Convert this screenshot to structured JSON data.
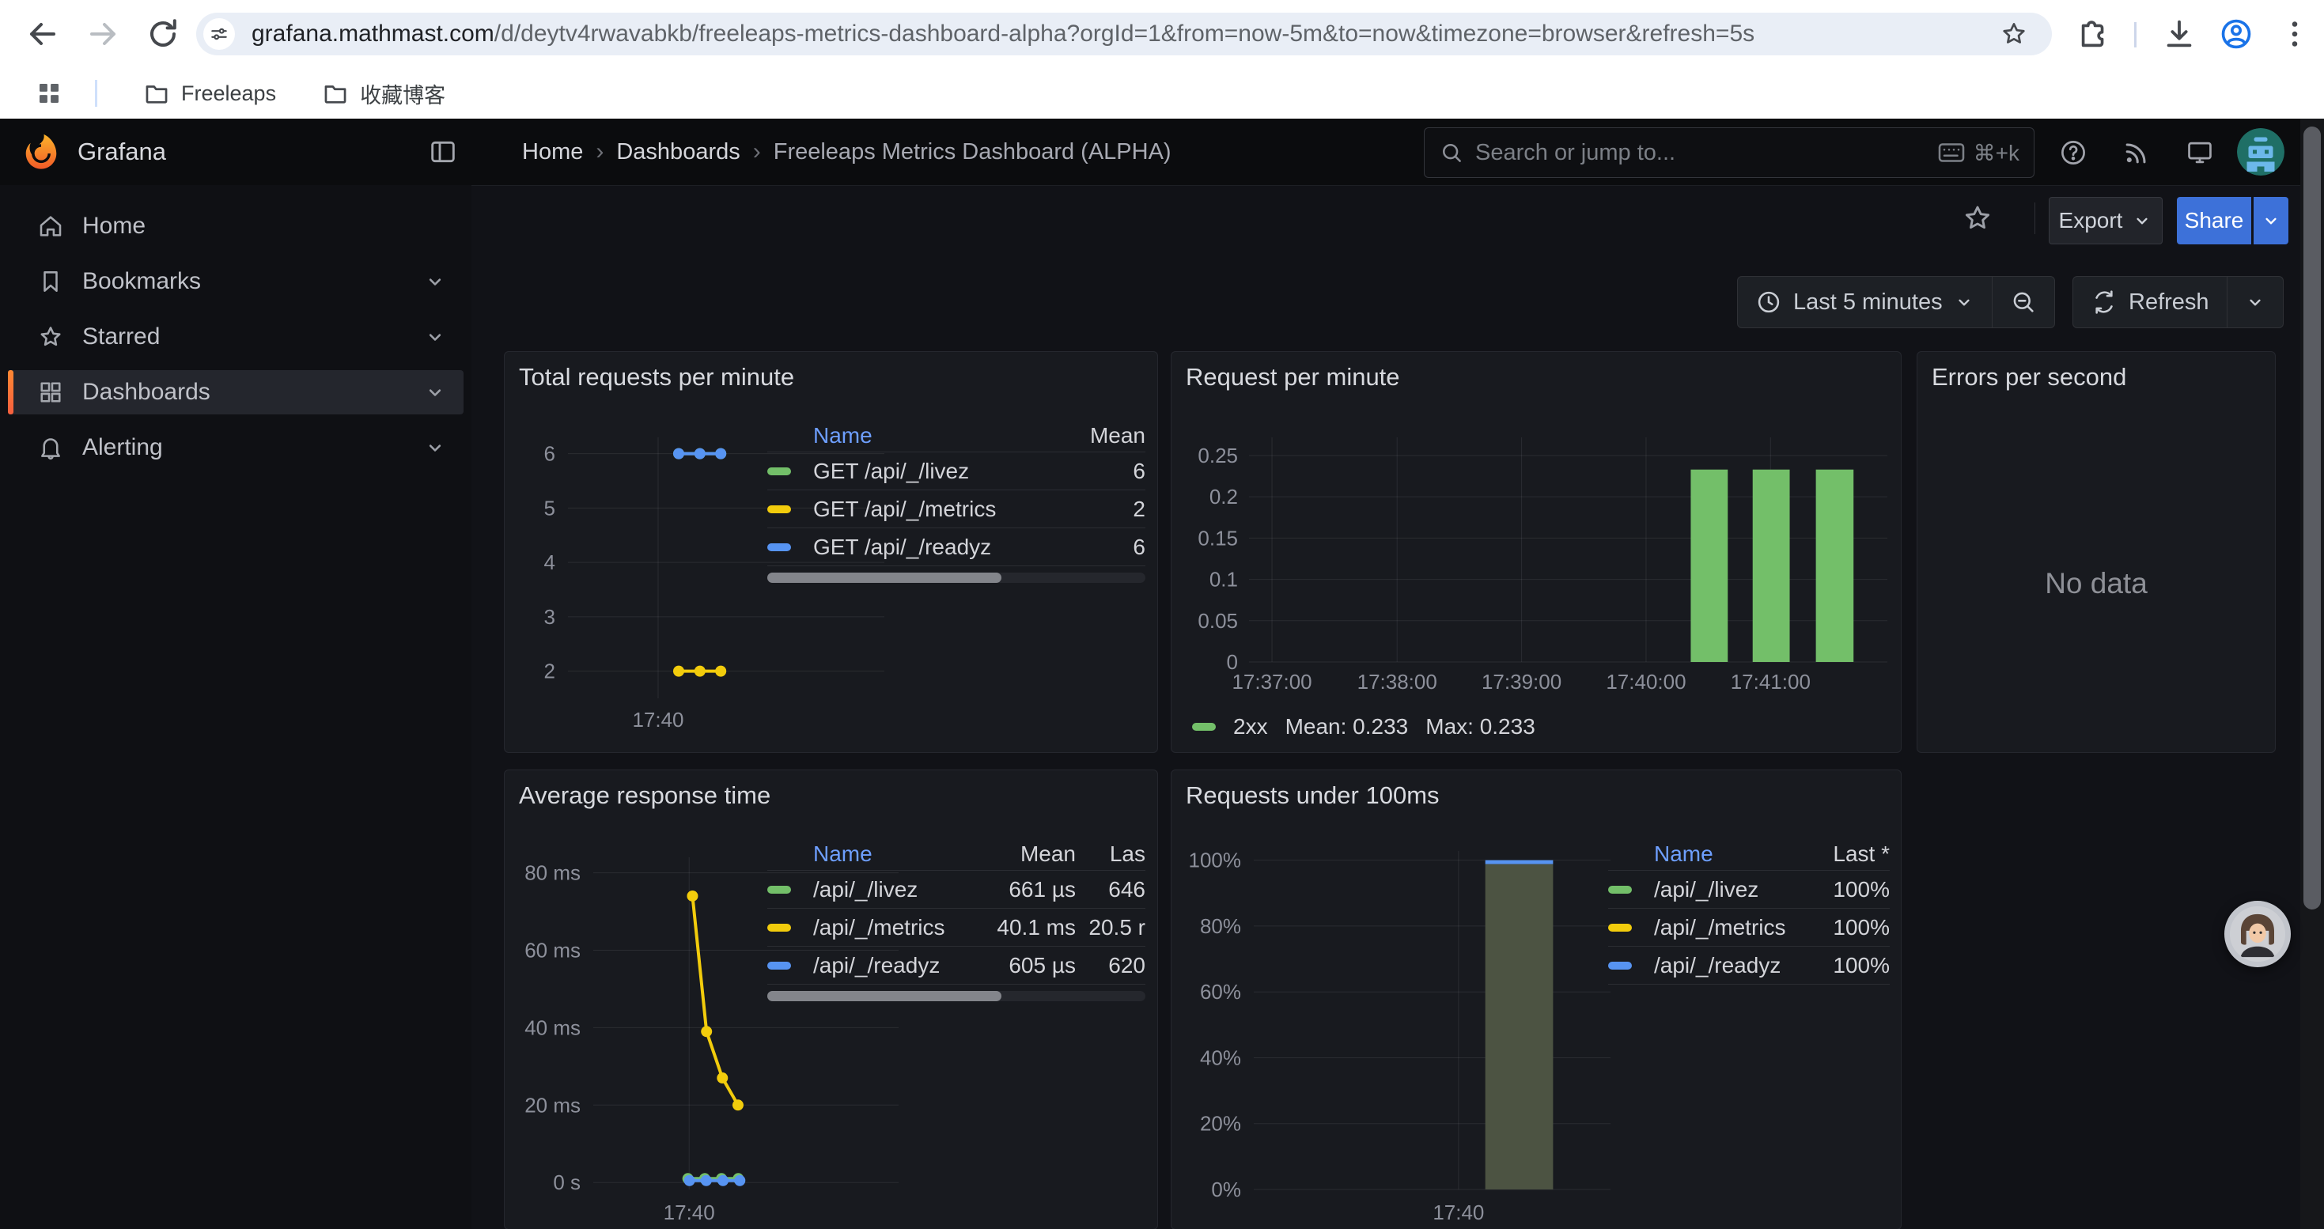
{
  "browser": {
    "toolbar": {
      "url_host": "grafana.mathmast.com",
      "url_path": "/d/deytv4rwavabkb/freeleaps-metrics-dashboard-alpha?orgId=1&from=now-5m&to=now&timezone=browser&refresh=5s",
      "icons": [
        "back-icon",
        "forward-icon",
        "reload-icon",
        "site-info-icon",
        "bookmark-star-icon",
        "extensions-icon",
        "download-icon",
        "profile-icon",
        "menu-icon"
      ]
    },
    "bookmarks": [
      "Freeleaps",
      "收藏博客"
    ]
  },
  "grafana": {
    "brand": "Grafana",
    "breadcrumb": [
      "Home",
      "Dashboards",
      "Freeleaps Metrics Dashboard (ALPHA)"
    ],
    "search": {
      "placeholder": "Search or jump to...",
      "shortcut": "⌘+k"
    },
    "header_icons": [
      "help-icon",
      "rss-icon",
      "monitor-icon",
      "user-avatar"
    ],
    "toolbar": {
      "export": "Export",
      "share": "Share"
    },
    "time_controls": {
      "range": "Last 5 minutes",
      "refresh": "Refresh"
    },
    "sidebar": [
      {
        "label": "Home",
        "icon": "home-icon",
        "chevron": false,
        "active": false
      },
      {
        "label": "Bookmarks",
        "icon": "bookmark-icon",
        "chevron": true,
        "active": false
      },
      {
        "label": "Starred",
        "icon": "star-icon",
        "chevron": true,
        "active": false
      },
      {
        "label": "Dashboards",
        "icon": "apps-icon",
        "chevron": true,
        "active": true
      },
      {
        "label": "Alerting",
        "icon": "bell-icon",
        "chevron": true,
        "active": false
      }
    ]
  },
  "colors": {
    "green": "#73BF69",
    "yellow": "#F2CC0C",
    "blue": "#5794F2",
    "link": "#6E9FFF",
    "primary": "#3D71D9",
    "active_accent": "#FF780A"
  },
  "panels": {
    "total_requests": {
      "title": "Total requests per minute",
      "table": {
        "headers": [
          "Name",
          "Mean"
        ],
        "rows": [
          {
            "color": "#73BF69",
            "name": "GET /api/_/livez",
            "values": [
              "6"
            ]
          },
          {
            "color": "#F2CC0C",
            "name": "GET /api/_/metrics",
            "values": [
              "2"
            ]
          },
          {
            "color": "#5794F2",
            "name": "GET /api/_/readyz",
            "values": [
              "6"
            ]
          }
        ]
      },
      "chart_data": {
        "type": "line",
        "ylim": [
          1.5,
          6.3
        ],
        "y_ticks": [
          {
            "label": "6",
            "v": 6
          },
          {
            "label": "5",
            "v": 5
          },
          {
            "label": "4",
            "v": 4
          },
          {
            "label": "3",
            "v": 3
          },
          {
            "label": "2",
            "v": 2
          }
        ],
        "x_ticks": [
          {
            "label": "17:40",
            "f": 0.285
          }
        ],
        "series": [
          {
            "name": "GET /api/_/livez",
            "color": "#73BF69",
            "points": [
              {
                "f": 0.35,
                "v": 6
              },
              {
                "f": 0.417,
                "v": 6
              },
              {
                "f": 0.483,
                "v": 6
              }
            ]
          },
          {
            "name": "GET /api/_/metrics",
            "color": "#F2CC0C",
            "points": [
              {
                "f": 0.35,
                "v": 2
              },
              {
                "f": 0.417,
                "v": 2
              },
              {
                "f": 0.483,
                "v": 2
              }
            ]
          },
          {
            "name": "GET /api/_/readyz",
            "color": "#5794F2",
            "points": [
              {
                "f": 0.35,
                "v": 6
              },
              {
                "f": 0.417,
                "v": 6
              },
              {
                "f": 0.483,
                "v": 6
              }
            ]
          }
        ]
      }
    },
    "request_per_minute": {
      "title": "Request per minute",
      "legend": {
        "name": "2xx",
        "mean": "Mean: 0.233",
        "max": "Max: 0.233",
        "color": "#73BF69"
      },
      "chart_data": {
        "type": "bar",
        "ylim": [
          0,
          0.272
        ],
        "y_ticks": [
          {
            "label": "0.25",
            "v": 0.25
          },
          {
            "label": "0.2",
            "v": 0.2
          },
          {
            "label": "0.15",
            "v": 0.15
          },
          {
            "label": "0.1",
            "v": 0.1
          },
          {
            "label": "0.05",
            "v": 0.05
          },
          {
            "label": "0",
            "v": 0
          }
        ],
        "x_ticks": [
          {
            "label": "17:37:00",
            "f": 0.036
          },
          {
            "label": "17:38:00",
            "f": 0.232
          },
          {
            "label": "17:39:00",
            "f": 0.427
          },
          {
            "label": "17:40:00",
            "f": 0.622
          },
          {
            "label": "17:41:00",
            "f": 0.817
          }
        ],
        "bars": [
          {
            "f0": 0.692,
            "f1": 0.75,
            "v": 0.233
          },
          {
            "f0": 0.789,
            "f1": 0.847,
            "v": 0.233
          },
          {
            "f0": 0.888,
            "f1": 0.947,
            "v": 0.233
          }
        ],
        "color": "#73BF69"
      }
    },
    "errors_per_second": {
      "title": "Errors per second",
      "no_data": "No data"
    },
    "avg_response_time": {
      "title": "Average response time",
      "table": {
        "headers": [
          "Name",
          "Mean",
          "Las"
        ],
        "rows": [
          {
            "color": "#73BF69",
            "name": "/api/_/livez",
            "values": [
              "661 µs",
              "646"
            ]
          },
          {
            "color": "#F2CC0C",
            "name": "/api/_/metrics",
            "values": [
              "40.1 ms",
              "20.5 r"
            ]
          },
          {
            "color": "#5794F2",
            "name": "/api/_/readyz",
            "values": [
              "605 µs",
              "620"
            ]
          }
        ]
      },
      "chart_data": {
        "type": "line",
        "ylim": [
          -1.8,
          84
        ],
        "y_ticks": [
          {
            "label": "80 ms",
            "v": 80
          },
          {
            "label": "60 ms",
            "v": 60
          },
          {
            "label": "40 ms",
            "v": 40
          },
          {
            "label": "20 ms",
            "v": 20
          },
          {
            "label": "0 s",
            "v": 0
          }
        ],
        "x_ticks": [
          {
            "label": "17:40",
            "f": 0.314
          }
        ],
        "series": [
          {
            "name": "/api/_/metrics",
            "color": "#F2CC0C",
            "points": [
              {
                "f": 0.325,
                "v": 74
              },
              {
                "f": 0.371,
                "v": 39
              },
              {
                "f": 0.423,
                "v": 27
              },
              {
                "f": 0.474,
                "v": 20
              }
            ]
          },
          {
            "name": "/api/_/livez",
            "color": "#73BF69",
            "points": [
              {
                "f": 0.31,
                "v": 1
              },
              {
                "f": 0.365,
                "v": 1
              },
              {
                "f": 0.42,
                "v": 1
              },
              {
                "f": 0.475,
                "v": 1
              }
            ]
          },
          {
            "name": "/api/_/readyz",
            "color": "#5794F2",
            "points": [
              {
                "f": 0.315,
                "v": 0.5
              },
              {
                "f": 0.37,
                "v": 0.5
              },
              {
                "f": 0.425,
                "v": 0.5
              },
              {
                "f": 0.48,
                "v": 0.5
              }
            ]
          }
        ]
      }
    },
    "requests_under_100ms": {
      "title": "Requests under 100ms",
      "table": {
        "headers": [
          "Name",
          "Last *"
        ],
        "rows": [
          {
            "color": "#73BF69",
            "name": "/api/_/livez",
            "values": [
              "100%"
            ]
          },
          {
            "color": "#F2CC0C",
            "name": "/api/_/metrics",
            "values": [
              "100%"
            ]
          },
          {
            "color": "#5794F2",
            "name": "/api/_/readyz",
            "values": [
              "100%"
            ]
          }
        ]
      },
      "chart_data": {
        "type": "bar",
        "ylim": [
          0,
          1.028
        ],
        "y_ticks": [
          {
            "label": "100%",
            "v": 1
          },
          {
            "label": "80%",
            "v": 0.8
          },
          {
            "label": "60%",
            "v": 0.6
          },
          {
            "label": "40%",
            "v": 0.4
          },
          {
            "label": "20%",
            "v": 0.2
          },
          {
            "label": "0%",
            "v": 0
          }
        ],
        "x_ticks": [
          {
            "label": "17:40",
            "f": 0.574
          }
        ],
        "bars": [
          {
            "f0": 0.649,
            "f1": 0.839,
            "v": 1
          }
        ],
        "color": "#4C5342",
        "cap_color": "#5794F2"
      }
    }
  }
}
